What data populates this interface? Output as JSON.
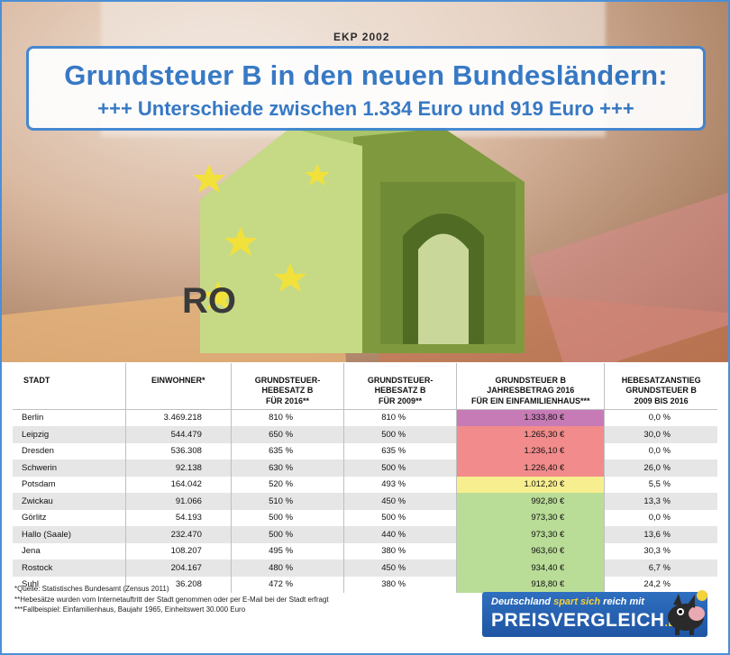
{
  "title": {
    "line1": "Grundsteuer B in den neuen Bundesländern:",
    "line2": "+++ Unterschiede zwischen 1.334 Euro und 919 Euro +++"
  },
  "banknote_text": "EKP 2002",
  "banknote_ro": "RO",
  "colors": {
    "accent": "#3b84d3",
    "row_highest": "#c77bb6",
    "row_high": "#f28b8b",
    "row_mid": "#f7ef8f",
    "row_low": "#b9dc97"
  },
  "table": {
    "headers": [
      "STADT",
      "EINWOHNER*",
      "GRUNDSTEUER-\nHEBESATZ B\nFÜR 2016**",
      "GRUNDSTEUER-\nHEBESATZ B\nFÜR 2009**",
      "GRUNDSTEUER B\nJAHRESBETRAG 2016\nFÜR EIN EINFAMILIENHAUS***",
      "HEBESATZANSTIEG\nGRUNDSTEUER B\n2009 BIS 2016"
    ],
    "rows": [
      {
        "stadt": "Berlin",
        "einwohner": "3.469.218",
        "hebesatz2016": "810 %",
        "hebesatz2009": "810 %",
        "betrag": "1.333,80 €",
        "anstieg": "0,0 %",
        "band": "row_highest"
      },
      {
        "stadt": "Leipzig",
        "einwohner": "544.479",
        "hebesatz2016": "650 %",
        "hebesatz2009": "500 %",
        "betrag": "1.265,30 €",
        "anstieg": "30,0 %",
        "band": "row_high"
      },
      {
        "stadt": "Dresden",
        "einwohner": "536.308",
        "hebesatz2016": "635 %",
        "hebesatz2009": "635 %",
        "betrag": "1.236,10 €",
        "anstieg": "0,0 %",
        "band": "row_high"
      },
      {
        "stadt": "Schwerin",
        "einwohner": "92.138",
        "hebesatz2016": "630 %",
        "hebesatz2009": "500 %",
        "betrag": "1.226,40 €",
        "anstieg": "26,0 %",
        "band": "row_high"
      },
      {
        "stadt": "Potsdam",
        "einwohner": "164.042",
        "hebesatz2016": "520 %",
        "hebesatz2009": "493 %",
        "betrag": "1.012,20 €",
        "anstieg": "5,5 %",
        "band": "row_mid"
      },
      {
        "stadt": "Zwickau",
        "einwohner": "91.066",
        "hebesatz2016": "510 %",
        "hebesatz2009": "450 %",
        "betrag": "992,80 €",
        "anstieg": "13,3 %",
        "band": "row_low"
      },
      {
        "stadt": "Görlitz",
        "einwohner": "54.193",
        "hebesatz2016": "500 %",
        "hebesatz2009": "500 %",
        "betrag": "973,30 €",
        "anstieg": "0,0 %",
        "band": "row_low"
      },
      {
        "stadt": "Hallo (Saale)",
        "einwohner": "232.470",
        "hebesatz2016": "500 %",
        "hebesatz2009": "440 %",
        "betrag": "973,30 €",
        "anstieg": "13,6 %",
        "band": "row_low"
      },
      {
        "stadt": "Jena",
        "einwohner": "108.207",
        "hebesatz2016": "495 %",
        "hebesatz2009": "380 %",
        "betrag": "963,60 €",
        "anstieg": "30,3 %",
        "band": "row_low"
      },
      {
        "stadt": "Rostock",
        "einwohner": "204.167",
        "hebesatz2016": "480 %",
        "hebesatz2009": "450 %",
        "betrag": "934,40 €",
        "anstieg": "6,7 %",
        "band": "row_low"
      },
      {
        "stadt": "Suhl",
        "einwohner": "36.208",
        "hebesatz2016": "472 %",
        "hebesatz2009": "380 %",
        "betrag": "918,80 €",
        "anstieg": "24,2 %",
        "band": "row_low"
      }
    ]
  },
  "footnotes": [
    "*Quelle: Statistisches Bundesamt (Zensus 2011)",
    "**Hebesätze wurden vom Internetauftritt der Stadt genommen oder per E-Mail bei der Stadt erfragt",
    "***Fallbeispiel: Einfamilienhaus, Baujahr 1965, Einheitswert 30.000 Euro"
  ],
  "brand": {
    "slogan_start": "Deutschland",
    "slogan_mid": "spart sich",
    "slogan_end": "reich mit",
    "name": "PREISVERGLEICH",
    "tld": ".DE"
  }
}
